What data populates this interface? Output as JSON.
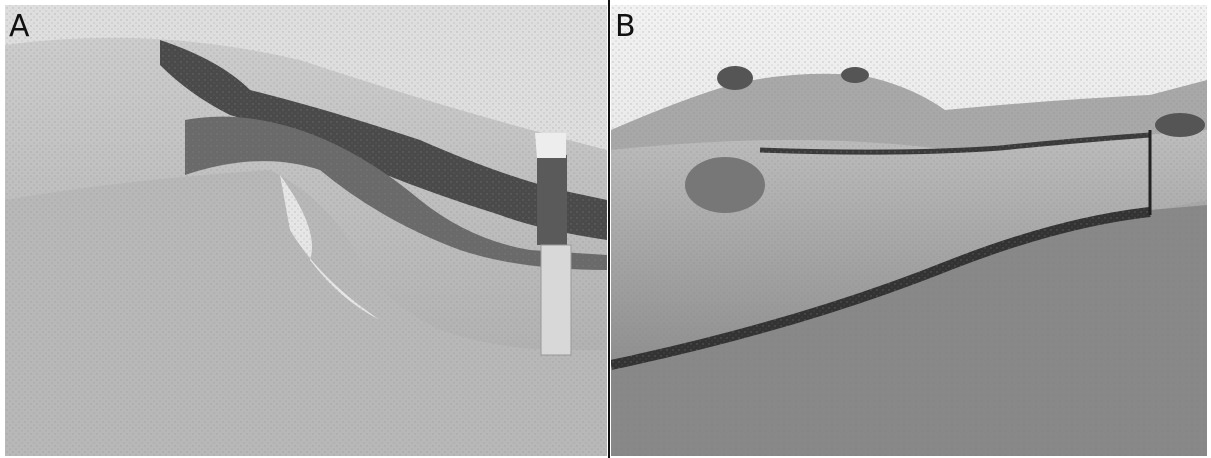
{
  "panels": [
    {
      "label": "A"
    },
    {
      "label": "B"
    }
  ]
}
